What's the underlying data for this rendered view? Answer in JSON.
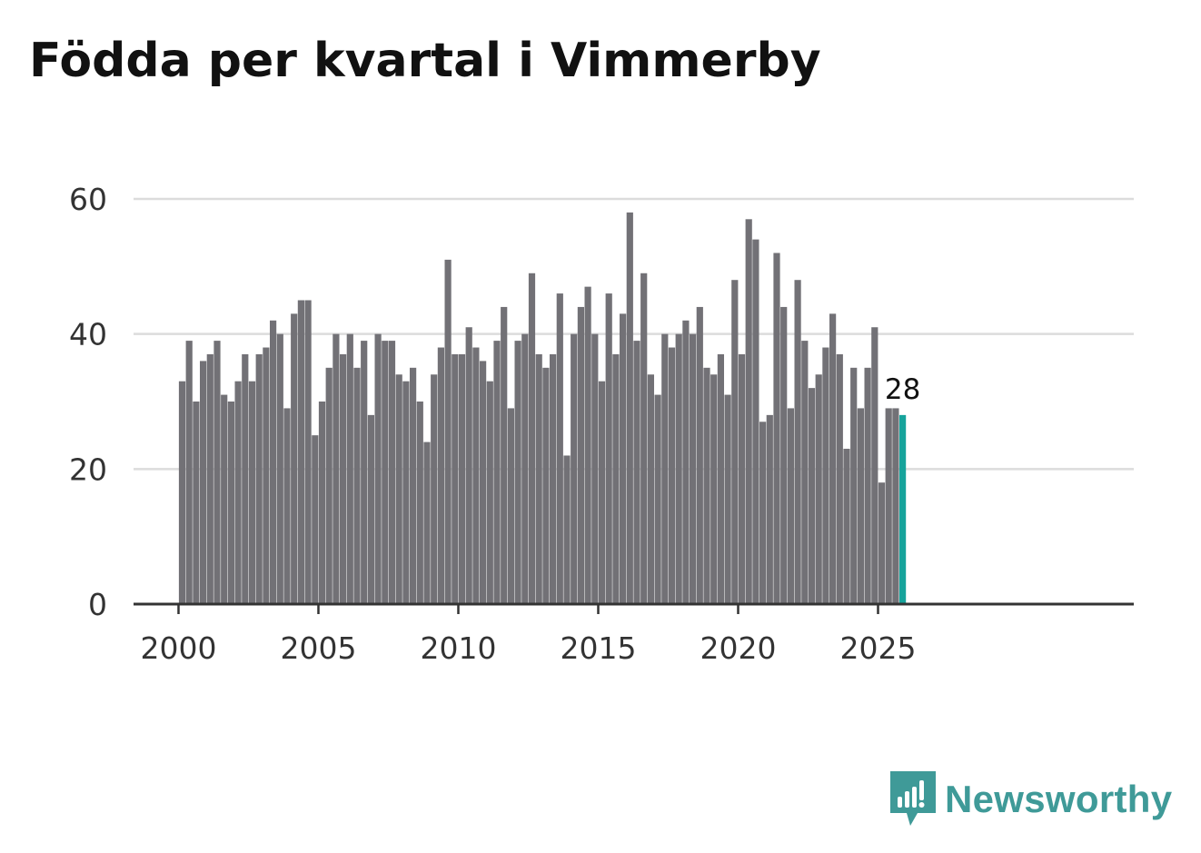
{
  "title": "Födda per kvartal i Vimmerby",
  "colors": {
    "bar": "#727176",
    "highlight": "#16a39b",
    "grid": "#dcdcdc",
    "axis": "#333333",
    "brand": "#3f9a98"
  },
  "brand": {
    "name": "Newsworthy",
    "icon": "newsworthy-logo-icon"
  },
  "chart_data": {
    "type": "bar",
    "title": "Födda per kvartal i Vimmerby",
    "xlabel": "",
    "ylabel": "",
    "ylim": [
      0,
      60
    ],
    "yticks": [
      0,
      20,
      40,
      60
    ],
    "xticks": [
      "2000",
      "2005",
      "2010",
      "2015",
      "2020",
      "2025"
    ],
    "grid": true,
    "legend": "none",
    "categories": [
      "2000 Q1",
      "2000 Q2",
      "2000 Q3",
      "2000 Q4",
      "2001 Q1",
      "2001 Q2",
      "2001 Q3",
      "2001 Q4",
      "2002 Q1",
      "2002 Q2",
      "2002 Q3",
      "2002 Q4",
      "2003 Q1",
      "2003 Q2",
      "2003 Q3",
      "2003 Q4",
      "2004 Q1",
      "2004 Q2",
      "2004 Q3",
      "2004 Q4",
      "2005 Q1",
      "2005 Q2",
      "2005 Q3",
      "2005 Q4",
      "2006 Q1",
      "2006 Q2",
      "2006 Q3",
      "2006 Q4",
      "2007 Q1",
      "2007 Q2",
      "2007 Q3",
      "2007 Q4",
      "2008 Q1",
      "2008 Q2",
      "2008 Q3",
      "2008 Q4",
      "2009 Q1",
      "2009 Q2",
      "2009 Q3",
      "2009 Q4",
      "2010 Q1",
      "2010 Q2",
      "2010 Q3",
      "2010 Q4",
      "2011 Q1",
      "2011 Q2",
      "2011 Q3",
      "2011 Q4",
      "2012 Q1",
      "2012 Q2",
      "2012 Q3",
      "2012 Q4",
      "2013 Q1",
      "2013 Q2",
      "2013 Q3",
      "2013 Q4",
      "2014 Q1",
      "2014 Q2",
      "2014 Q3",
      "2014 Q4",
      "2015 Q1",
      "2015 Q2",
      "2015 Q3",
      "2015 Q4",
      "2016 Q1",
      "2016 Q2",
      "2016 Q3",
      "2016 Q4",
      "2017 Q1",
      "2017 Q2",
      "2017 Q3",
      "2017 Q4",
      "2018 Q1",
      "2018 Q2",
      "2018 Q3",
      "2018 Q4",
      "2019 Q1",
      "2019 Q2",
      "2019 Q3",
      "2019 Q4",
      "2020 Q1",
      "2020 Q2",
      "2020 Q3",
      "2020 Q4",
      "2021 Q1",
      "2021 Q2",
      "2021 Q3",
      "2021 Q4",
      "2022 Q1",
      "2022 Q2",
      "2022 Q3",
      "2022 Q4",
      "2023 Q1",
      "2023 Q2",
      "2023 Q3",
      "2023 Q4",
      "2024 Q1",
      "2024 Q2",
      "2024 Q3",
      "2024 Q4",
      "2025 Q1",
      "2025 Q2",
      "2025 Q3",
      "2025 Q4"
    ],
    "values": [
      33,
      39,
      30,
      36,
      37,
      39,
      31,
      30,
      33,
      37,
      33,
      37,
      38,
      42,
      40,
      29,
      43,
      45,
      45,
      25,
      30,
      35,
      40,
      37,
      40,
      35,
      39,
      28,
      40,
      39,
      39,
      34,
      33,
      35,
      30,
      24,
      34,
      38,
      51,
      37,
      37,
      41,
      38,
      36,
      33,
      39,
      44,
      29,
      39,
      40,
      49,
      37,
      35,
      37,
      46,
      22,
      40,
      44,
      47,
      40,
      33,
      46,
      37,
      43,
      58,
      39,
      49,
      34,
      31,
      40,
      38,
      40,
      42,
      40,
      44,
      35,
      34,
      37,
      31,
      48,
      37,
      57,
      54,
      27,
      28,
      52,
      44,
      29,
      48,
      39,
      32,
      34,
      38,
      43,
      37,
      23,
      35,
      29,
      35,
      41,
      18,
      29,
      29,
      28
    ],
    "highlight_index": 103,
    "annotations": [
      {
        "category": "2025 Q4",
        "text": "28"
      }
    ]
  }
}
